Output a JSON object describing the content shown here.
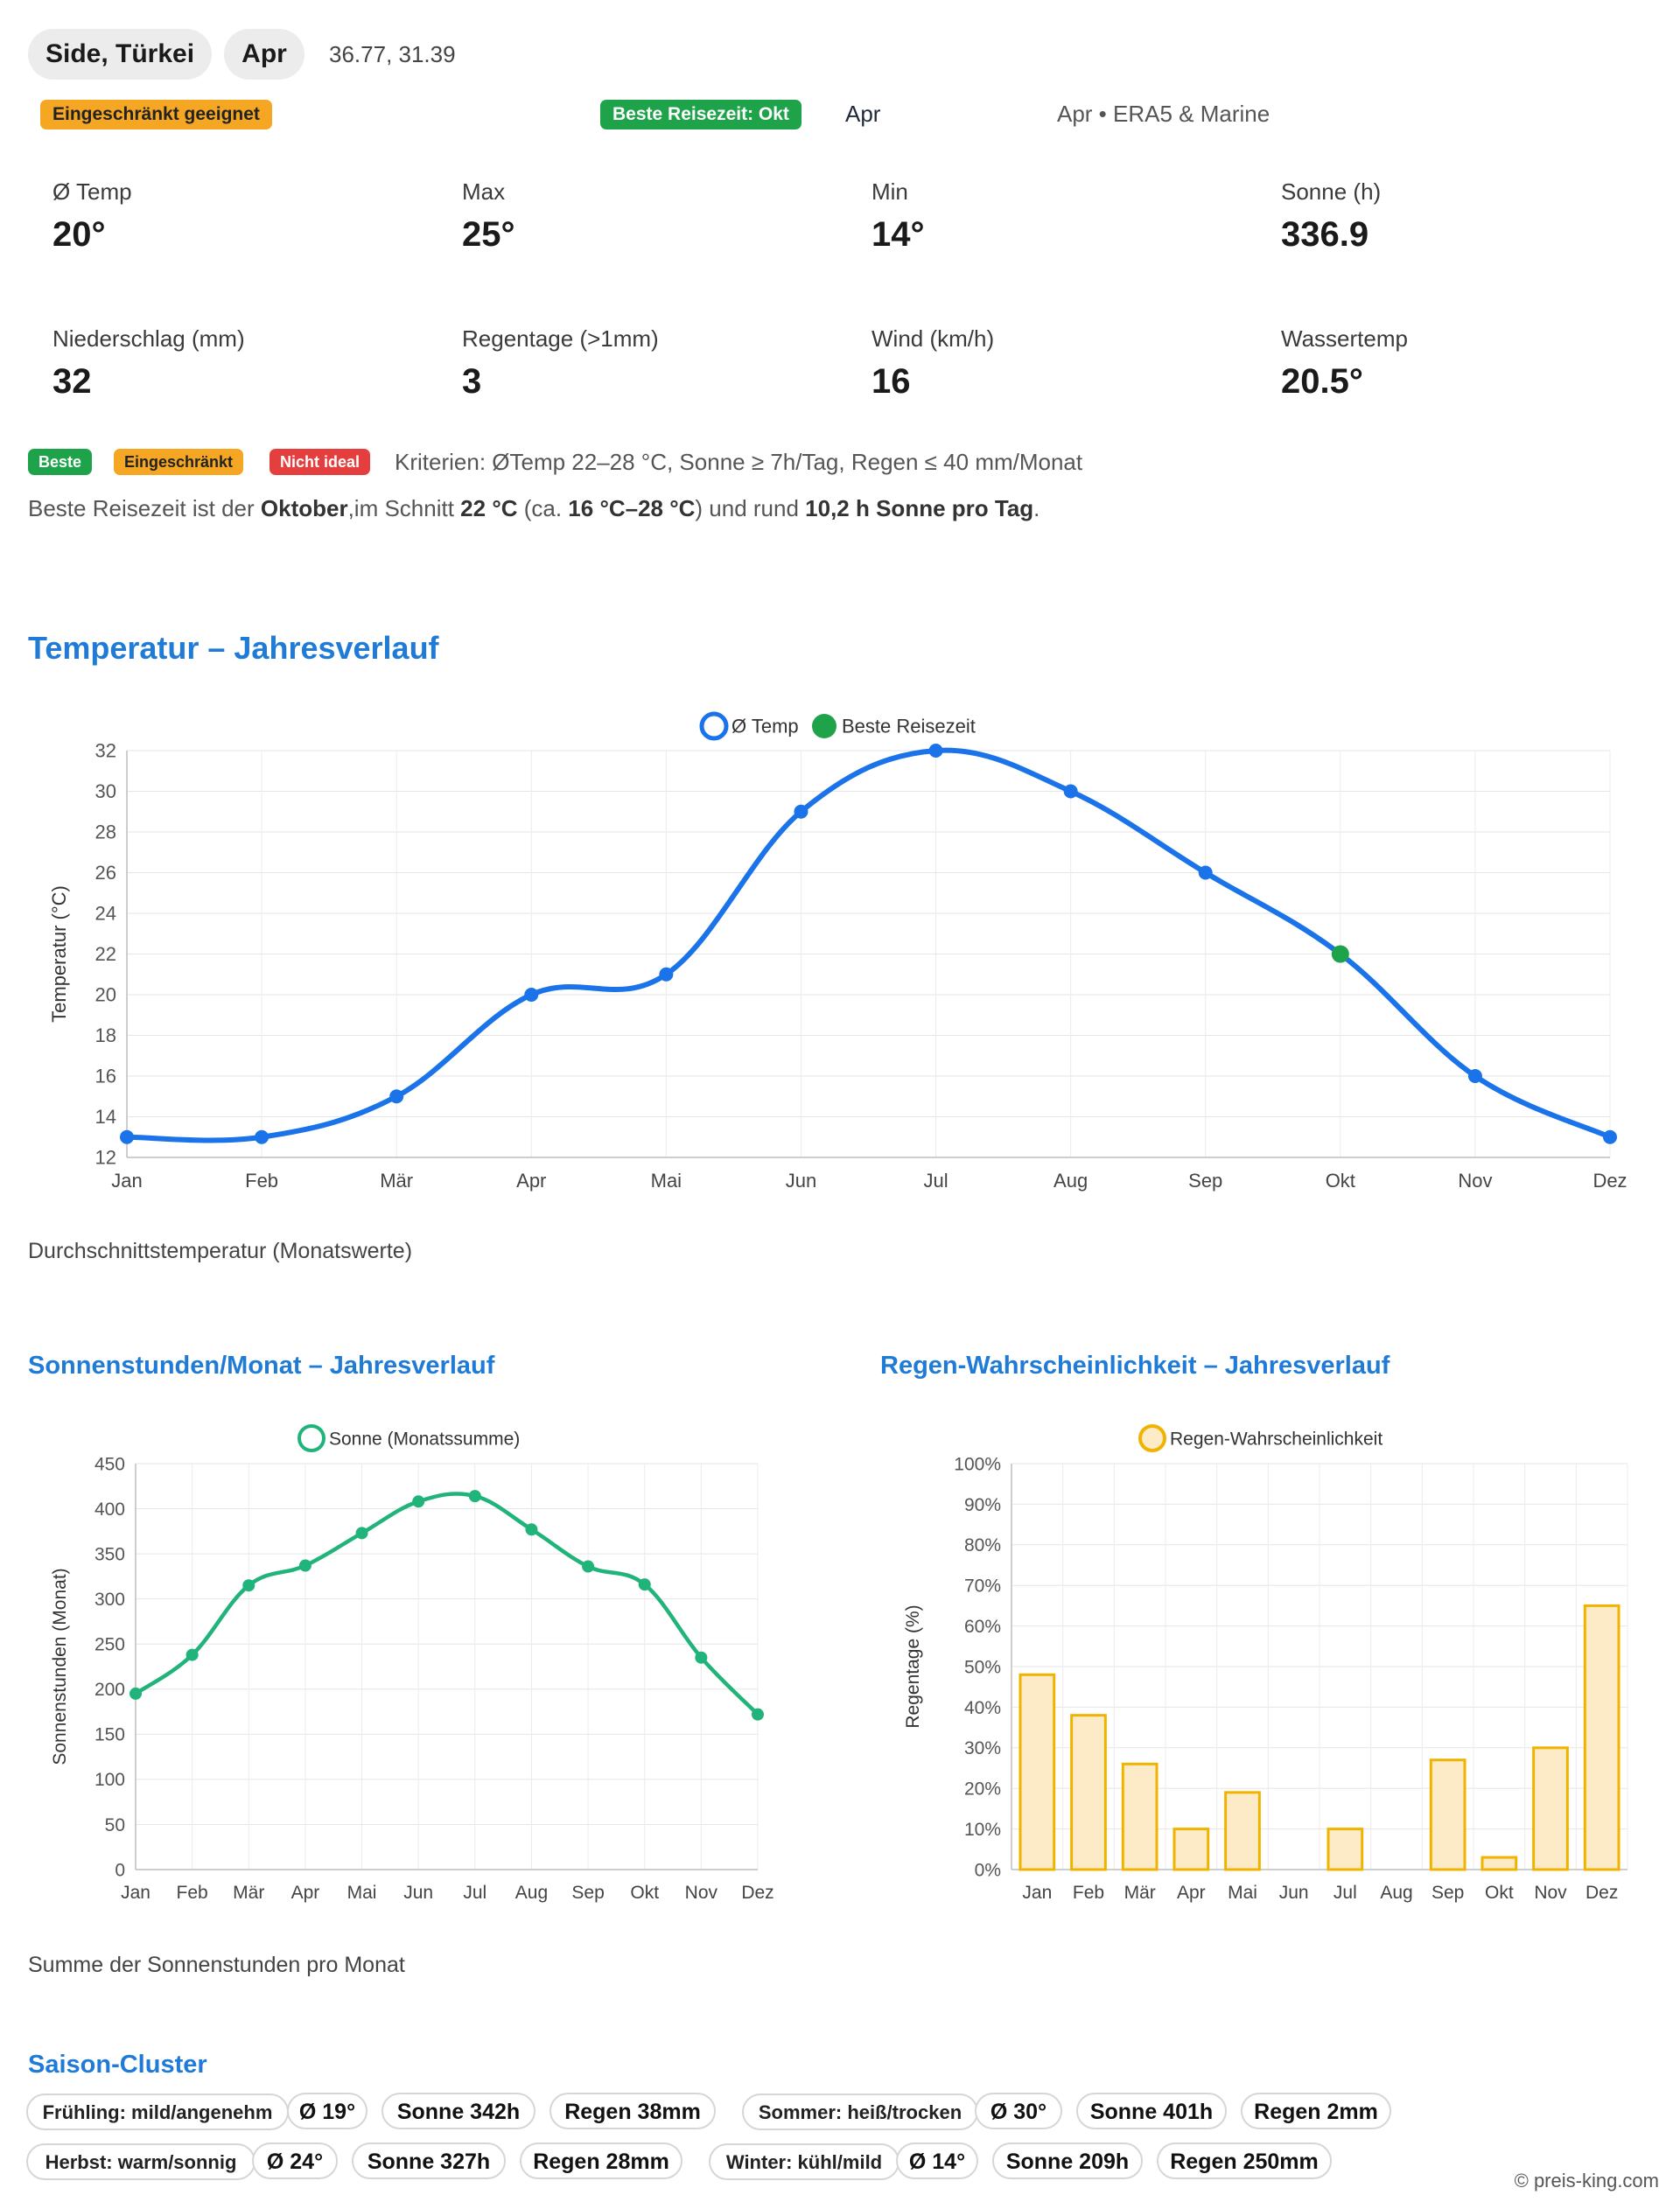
{
  "header": {
    "location": "Side, Türkei",
    "month": "Apr",
    "coords": "36.77, 31.39"
  },
  "status": {
    "suitability": "Eingeschränkt geeignet",
    "best_label": "Beste Reisezeit: Okt",
    "current_month": "Apr",
    "source": "Apr • ERA5 & Marine",
    "colors": {
      "good": "#1fa34a",
      "limited": "#f5a623",
      "bad": "#e53e3e",
      "accent": "#1f7bd6"
    }
  },
  "stats": [
    {
      "label": "Ø Temp",
      "value": "20°"
    },
    {
      "label": "Max",
      "value": "25°"
    },
    {
      "label": "Min",
      "value": "14°"
    },
    {
      "label": "Sonne (h)",
      "value": "336.9"
    },
    {
      "label": "Niederschlag (mm)",
      "value": "32"
    },
    {
      "label": "Regentage (>1mm)",
      "value": "3"
    },
    {
      "label": "Wind (km/h)",
      "value": "16"
    },
    {
      "label": "Wassertemp",
      "value": "20.5°"
    }
  ],
  "legend": {
    "best": "Beste",
    "limited": "Eingeschränkt",
    "bad": "Nicht ideal",
    "criteria": "Kriterien: ØTemp 22–28 °C, Sonne ≥ 7h/Tag, Regen ≤ 40 mm/Monat"
  },
  "summary": {
    "t1": "Beste Reisezeit ist der ",
    "month": "Oktober",
    "t2": ",im Schnitt ",
    "avg": "22 °C",
    "t3": " (ca. ",
    "range": "16 °C–28 °C",
    "t4": ") und rund ",
    "sun": "10,2 h Sonne pro Tag",
    "t5": "."
  },
  "sections": {
    "temp_title": "Temperatur – Jahresverlauf",
    "temp_caption": "Durchschnittstemperatur (Monatswerte)",
    "sun_title": "Sonnenstunden/Monat – Jahresverlauf",
    "sun_caption": "Summe der Sonnenstunden pro Monat",
    "rain_title": "Regen-Wahrscheinlichkeit – Jahresverlauf",
    "season_title": "Saison-Cluster"
  },
  "chart_data": [
    {
      "type": "line",
      "title": "Temperatur – Jahresverlauf",
      "categories": [
        "Jan",
        "Feb",
        "Mär",
        "Apr",
        "Mai",
        "Jun",
        "Jul",
        "Aug",
        "Sep",
        "Okt",
        "Nov",
        "Dez"
      ],
      "series": [
        {
          "name": "Ø Temp",
          "color": "#1a73e8",
          "values": [
            13,
            13,
            15,
            20,
            21,
            29,
            32,
            30,
            26,
            22,
            16,
            13
          ]
        },
        {
          "name": "Beste Reisezeit",
          "color": "#1fa34a",
          "highlight_category": "Okt",
          "value": 22
        }
      ],
      "ylabel": "Temperatur (°C)",
      "ylim": [
        12,
        32
      ],
      "yticks": [
        "12",
        "14",
        "16",
        "18",
        "20",
        "22",
        "24",
        "26",
        "28",
        "30",
        "32"
      ]
    },
    {
      "type": "line",
      "title": "Sonnenstunden/Monat – Jahresverlauf",
      "categories": [
        "Jan",
        "Feb",
        "Mär",
        "Apr",
        "Mai",
        "Jun",
        "Jul",
        "Aug",
        "Sep",
        "Okt",
        "Nov",
        "Dez"
      ],
      "series": [
        {
          "name": "Sonne (Monatssumme)",
          "color": "#20b37a",
          "values": [
            195,
            238,
            315,
            337,
            373,
            408,
            414,
            377,
            336,
            316,
            235,
            172
          ]
        }
      ],
      "ylabel": "Sonnenstunden (Monat)",
      "ylim": [
        0,
        450
      ],
      "yticks": [
        "0",
        "50",
        "100",
        "150",
        "200",
        "250",
        "300",
        "350",
        "400",
        "450"
      ]
    },
    {
      "type": "bar",
      "title": "Regen-Wahrscheinlichkeit – Jahresverlauf",
      "categories": [
        "Jan",
        "Feb",
        "Mär",
        "Apr",
        "Mai",
        "Jun",
        "Jul",
        "Aug",
        "Sep",
        "Okt",
        "Nov",
        "Dez"
      ],
      "series": [
        {
          "name": "Regen-Wahrscheinlichkeit",
          "color": "#f0b400",
          "values": [
            48,
            38,
            26,
            10,
            19,
            0,
            10,
            0,
            27,
            3,
            30,
            65
          ]
        }
      ],
      "ylabel": "Regentage (%)",
      "ylim": [
        0,
        100
      ],
      "yticks": [
        "0%",
        "10%",
        "20%",
        "30%",
        "40%",
        "50%",
        "60%",
        "70%",
        "80%",
        "90%",
        "100%"
      ]
    }
  ],
  "seasons": [
    {
      "name": "Frühling: mild/angenehm",
      "temp": "Ø 19°",
      "sun": "Sonne 342h",
      "rain": "Regen 38mm"
    },
    {
      "name": "Sommer: heiß/trocken",
      "temp": "Ø 30°",
      "sun": "Sonne 401h",
      "rain": "Regen 2mm"
    },
    {
      "name": "Herbst: warm/sonnig",
      "temp": "Ø 24°",
      "sun": "Sonne 327h",
      "rain": "Regen 28mm"
    },
    {
      "name": "Winter: kühl/mild",
      "temp": "Ø 14°",
      "sun": "Sonne 209h",
      "rain": "Regen 250mm"
    }
  ],
  "footer": {
    "copyright": "© preis-king.com"
  }
}
